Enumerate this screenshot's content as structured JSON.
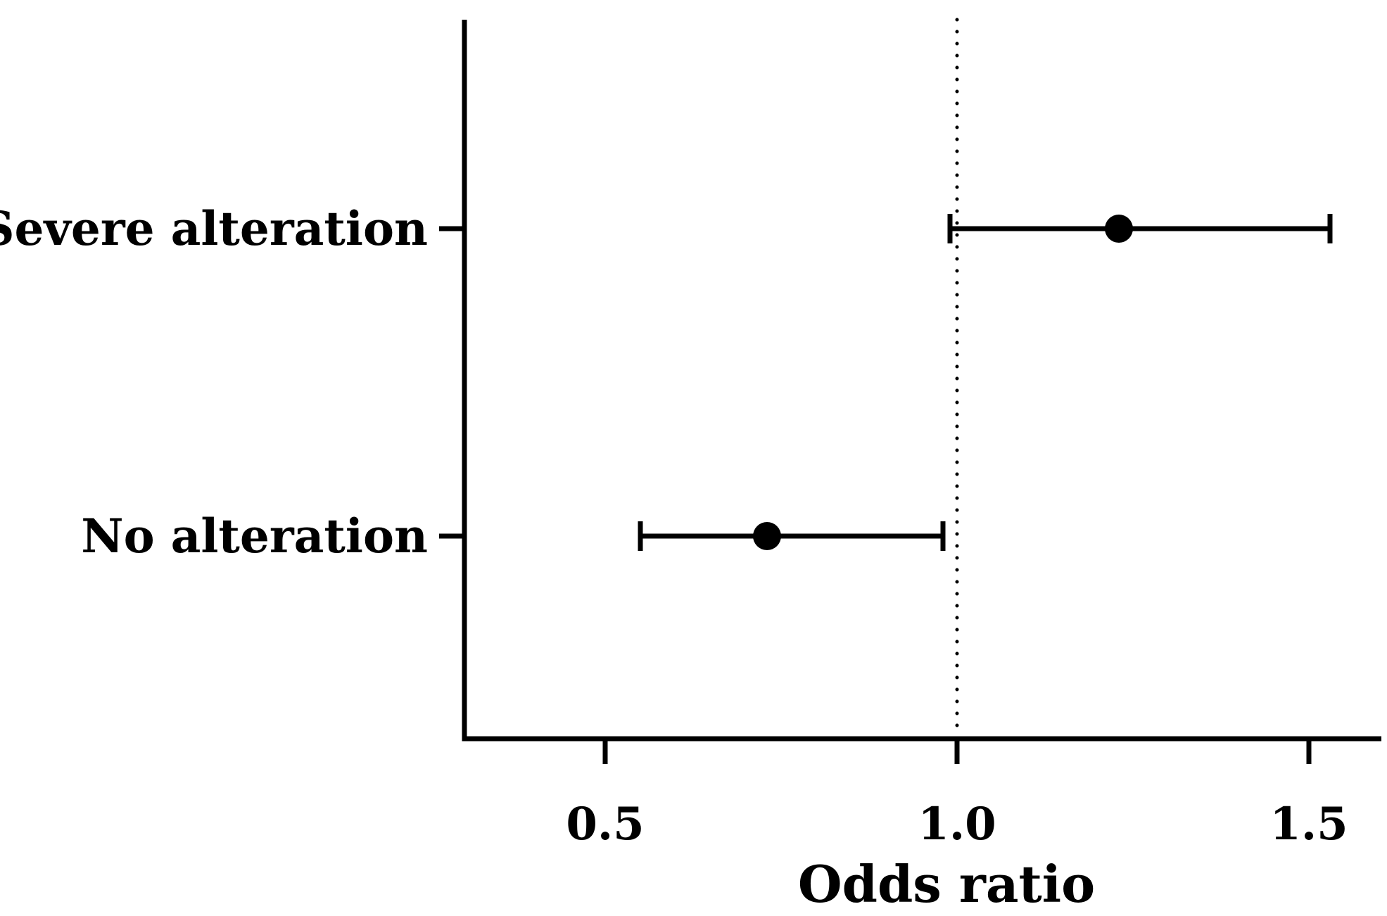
{
  "chart_data": {
    "type": "forest",
    "xlabel": "Odds ratio",
    "xlim": [
      0.3,
      1.6
    ],
    "xticks": [
      0.5,
      1.0,
      1.5
    ],
    "xtick_labels": [
      "0.5",
      "1.0",
      "1.5"
    ],
    "reference_line": 1.0,
    "reference_line_style": "dotted",
    "grid": false,
    "rows": [
      {
        "label": "Severe alteration",
        "estimate": 1.23,
        "ci_low": 0.99,
        "ci_high": 1.53
      },
      {
        "label": "No alteration",
        "estimate": 0.73,
        "ci_low": 0.55,
        "ci_high": 0.98
      }
    ],
    "colors": {
      "marks": "#000000",
      "background": "#ffffff"
    }
  }
}
